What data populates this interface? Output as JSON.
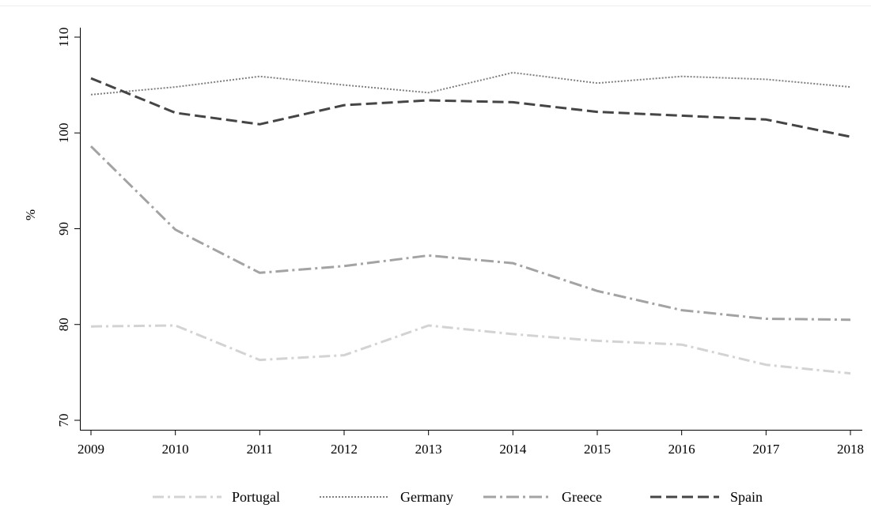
{
  "chart_data": {
    "type": "line",
    "title": "",
    "xlabel": "",
    "ylabel": "%",
    "x": [
      2009,
      2010,
      2011,
      2012,
      2013,
      2014,
      2015,
      2016,
      2017,
      2018
    ],
    "xlim": [
      2009,
      2018
    ],
    "ylim": [
      70,
      110
    ],
    "yticks": [
      70,
      80,
      90,
      100,
      110
    ],
    "grid": false,
    "legend_position": "bottom",
    "series": [
      {
        "name": "Portugal",
        "color": "#d3d3d3",
        "line_style": "dash-dot",
        "values": [
          79.8,
          79.9,
          76.3,
          76.8,
          79.9,
          79.0,
          78.3,
          77.9,
          75.8,
          74.9
        ]
      },
      {
        "name": "Germany",
        "color": "#7f7f7f",
        "line_style": "dotted",
        "values": [
          104.0,
          104.8,
          105.9,
          105.0,
          104.2,
          106.3,
          105.2,
          105.9,
          105.6,
          104.8
        ]
      },
      {
        "name": "Greece",
        "color": "#a3a3a3",
        "line_style": "long-dash-dot",
        "values": [
          98.6,
          89.9,
          85.4,
          86.1,
          87.2,
          86.4,
          83.5,
          81.5,
          80.6,
          80.5
        ]
      },
      {
        "name": "Spain",
        "color": "#454545",
        "line_style": "dashed",
        "values": [
          105.7,
          102.1,
          100.9,
          102.9,
          103.4,
          103.2,
          102.2,
          101.8,
          101.4,
          99.6
        ]
      }
    ]
  }
}
